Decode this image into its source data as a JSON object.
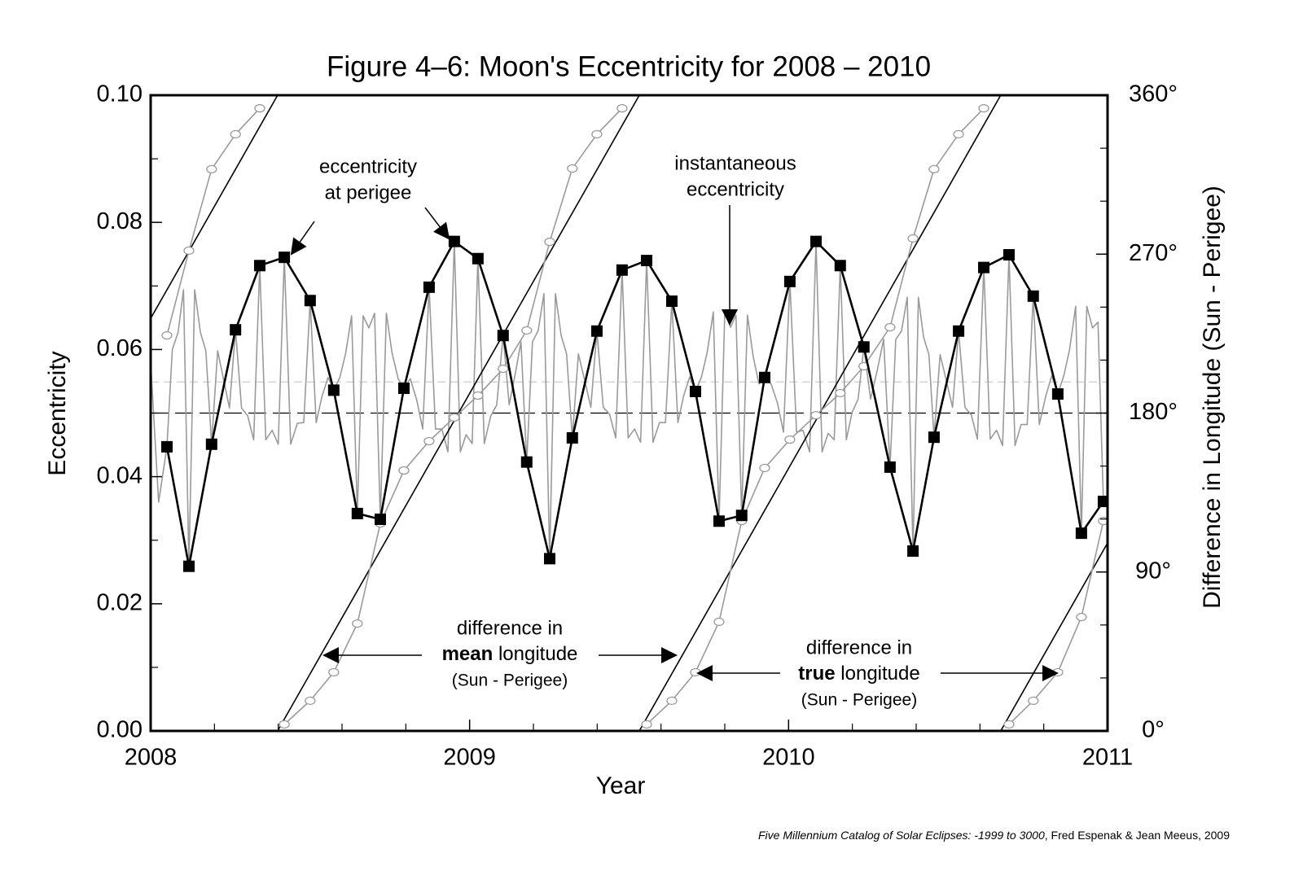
{
  "chart_data": {
    "type": "line",
    "title": "Figure 4–6:  Moon's Eccentricity for 2008 – 2010",
    "xlabel": "Year",
    "ylabel": "Eccentricity",
    "y2label": "Difference in Longitude (Sun - Perigee)",
    "xlim": [
      2008,
      2011
    ],
    "xticks": [
      2008,
      2009,
      2010,
      2011
    ],
    "xminorticks": [
      2008.2,
      2008.4,
      2008.6,
      2008.8,
      2009.2,
      2009.4,
      2009.6,
      2009.8,
      2010.2,
      2010.4,
      2010.6,
      2010.8
    ],
    "ylim": [
      0,
      0.1
    ],
    "yticks": [
      {
        "value": 0,
        "label": "0.00"
      },
      0.02,
      0.04,
      0.06,
      0.08,
      {
        "value": 0.1,
        "label": "0.10"
      }
    ],
    "yminorticks": [
      0.01,
      0.03,
      0.05,
      0.07,
      0.09
    ],
    "y2lim": [
      0,
      360
    ],
    "y2ticks": [
      {
        "value": 0,
        "label": "0°"
      },
      {
        "value": 90,
        "label": "90°"
      },
      {
        "value": 180,
        "label": "180°"
      },
      {
        "value": 270,
        "label": "270°"
      },
      {
        "value": 360,
        "label": "360°"
      }
    ],
    "y2minorticks": [
      30,
      60,
      120,
      150,
      210,
      240,
      300,
      330
    ],
    "hlines": [
      {
        "value": 0.0549,
        "color": "#cccccc",
        "dash": "10 6"
      },
      {
        "value": 0.05,
        "color": "#000000",
        "dash": "22 8"
      }
    ],
    "series": [
      {
        "color": "#9a9a9a",
        "width": 1.6,
        "x": [
          2008.0,
          2008.025,
          2008.051,
          2008.068,
          2008.086,
          2008.103,
          2008.12,
          2008.138,
          2008.156,
          2008.173,
          2008.191,
          2008.21,
          2008.229,
          2008.247,
          2008.266,
          2008.285,
          2008.304,
          2008.323,
          2008.342,
          2008.361,
          2008.381,
          2008.4,
          2008.419,
          2008.439,
          2008.46,
          2008.48,
          2008.5,
          2008.519,
          2008.537,
          2008.556,
          2008.574,
          2008.593,
          2008.611,
          2008.63,
          2008.648,
          2008.666,
          2008.684,
          2008.702,
          2008.72,
          2008.739,
          2008.757,
          2008.776,
          2008.794,
          2008.814,
          2008.834,
          2008.853,
          2008.873,
          2008.893,
          2008.913,
          2008.932,
          2008.952,
          2008.971,
          2008.989,
          2009.008,
          2009.026,
          2009.046,
          2009.066,
          2009.085,
          2009.105,
          2009.124,
          2009.142,
          2009.161,
          2009.179,
          2009.197,
          2009.215,
          2009.233,
          2009.251,
          2009.269,
          2009.287,
          2009.304,
          2009.322,
          2009.341,
          2009.361,
          2009.38,
          2009.399,
          2009.419,
          2009.439,
          2009.458,
          2009.478,
          2009.497,
          2009.517,
          2009.536,
          2009.555,
          2009.575,
          2009.595,
          2009.614,
          2009.634,
          2009.653,
          2009.671,
          2009.69,
          2009.708,
          2009.727,
          2009.745,
          2009.764,
          2009.782,
          2009.8,
          2009.818,
          2009.835,
          2009.853,
          2009.871,
          2009.889,
          2009.907,
          2009.925,
          2009.945,
          2009.965,
          2009.984,
          2010.004,
          2010.025,
          2010.045,
          2010.066,
          2010.086,
          2010.105,
          2010.124,
          2010.143,
          2010.162,
          2010.181,
          2010.199,
          2010.218,
          2010.236,
          2010.257,
          2010.277,
          2010.298,
          2010.318,
          2010.336,
          2010.354,
          2010.372,
          2010.39,
          2010.407,
          2010.423,
          2010.44,
          2010.456,
          2010.475,
          2010.495,
          2010.514,
          2010.533,
          2010.553,
          2010.573,
          2010.592,
          2010.612,
          2010.632,
          2010.652,
          2010.671,
          2010.691,
          2010.71,
          2010.729,
          2010.748,
          2010.767,
          2010.786,
          2010.806,
          2010.825,
          2010.844,
          2010.863,
          2010.881,
          2010.9,
          2010.918,
          2010.935,
          2010.953,
          2010.97,
          2010.987
        ],
        "values": [
          0.058,
          0.036,
          0.0447,
          0.06,
          0.0627,
          0.0694,
          0.0259,
          0.0694,
          0.0627,
          0.0598,
          0.0451,
          0.0598,
          0.0552,
          0.0508,
          0.0631,
          0.0508,
          0.0496,
          0.0458,
          0.0732,
          0.0458,
          0.0473,
          0.0451,
          0.0745,
          0.0451,
          0.0484,
          0.0485,
          0.0677,
          0.0485,
          0.0526,
          0.0556,
          0.0536,
          0.0556,
          0.0593,
          0.0653,
          0.0342,
          0.0653,
          0.0634,
          0.0657,
          0.0333,
          0.0657,
          0.0594,
          0.0554,
          0.0539,
          0.0554,
          0.0521,
          0.0475,
          0.0698,
          0.0475,
          0.0475,
          0.0439,
          0.077,
          0.0439,
          0.0466,
          0.0452,
          0.0743,
          0.0452,
          0.0495,
          0.0513,
          0.0622,
          0.0513,
          0.0559,
          0.0612,
          0.0423,
          0.0612,
          0.063,
          0.0688,
          0.0271,
          0.0688,
          0.0622,
          0.0593,
          0.0461,
          0.0593,
          0.0551,
          0.0509,
          0.0629,
          0.0509,
          0.0498,
          0.0461,
          0.0725,
          0.0461,
          0.0475,
          0.0454,
          0.074,
          0.0454,
          0.0485,
          0.0485,
          0.0676,
          0.0485,
          0.0527,
          0.0557,
          0.0534,
          0.0557,
          0.0596,
          0.0659,
          0.033,
          0.0659,
          0.0635,
          0.0654,
          0.0339,
          0.0654,
          0.0589,
          0.0546,
          0.0556,
          0.0546,
          0.0516,
          0.047,
          0.0707,
          0.047,
          0.0473,
          0.0439,
          0.077,
          0.0439,
          0.0468,
          0.0458,
          0.0732,
          0.0458,
          0.0501,
          0.0522,
          0.0604,
          0.0522,
          0.0565,
          0.0616,
          0.0415,
          0.0616,
          0.0629,
          0.0682,
          0.0283,
          0.0682,
          0.062,
          0.0592,
          0.0462,
          0.0592,
          0.055,
          0.0509,
          0.0629,
          0.0509,
          0.0497,
          0.0459,
          0.0729,
          0.0459,
          0.0473,
          0.0449,
          0.0749,
          0.0449,
          0.0482,
          0.0482,
          0.0684,
          0.0482,
          0.0526,
          0.0559,
          0.053,
          0.0559,
          0.06,
          0.0668,
          0.0311,
          0.0668,
          0.0634,
          0.0643,
          0.0361
        ]
      },
      {
        "color": "#000000",
        "width": 1.6,
        "axis": "y2",
        "wrap": true,
        "x": [
          2008,
          2008.398,
          2008.398,
          2009.532,
          2009.532,
          2010.665,
          2010.665,
          2011
        ],
        "values": [
          233.6,
          360,
          0,
          360,
          0,
          360,
          0,
          106.4
        ]
      },
      {
        "color": "#9a9a9a",
        "width": 1.6,
        "axis": "y2",
        "wrap": true,
        "marker": "circle",
        "x": [
          2008.051,
          2008.12,
          2008.191,
          2008.266,
          2008.342,
          2008.419,
          2008.5,
          2008.574,
          2008.648,
          2008.72,
          2008.794,
          2008.873,
          2008.952,
          2009.026,
          2009.105,
          2009.179,
          2009.251,
          2009.322,
          2009.399,
          2009.478,
          2009.555,
          2009.634,
          2009.708,
          2009.782,
          2009.853,
          2009.925,
          2010.004,
          2010.086,
          2010.162,
          2010.236,
          2010.318,
          2010.39,
          2010.456,
          2010.533,
          2010.612,
          2010.691,
          2010.767,
          2010.844,
          2010.918,
          2010.987
        ],
        "values": [
          224.0,
          272.0,
          318.1,
          337.9,
          352.6,
          3.7,
          17.1,
          33.2,
          60.8,
          117.5,
          147.5,
          164.1,
          177.5,
          189.9,
          205.1,
          226.8,
          277.0,
          318.5,
          337.9,
          352.6,
          3.7,
          17.1,
          33.2,
          61.8,
          118.9,
          148.9,
          165.0,
          178.8,
          191.3,
          206.5,
          228.6,
          278.9,
          318.1,
          337.9,
          352.6,
          3.7,
          17.1,
          33.2,
          64.5,
          118.9
        ]
      },
      {
        "color": "#000000",
        "width": 2.6,
        "marker": "square",
        "x": [
          2008.051,
          2008.12,
          2008.191,
          2008.266,
          2008.342,
          2008.419,
          2008.5,
          2008.574,
          2008.648,
          2008.72,
          2008.794,
          2008.873,
          2008.952,
          2009.026,
          2009.105,
          2009.179,
          2009.251,
          2009.322,
          2009.399,
          2009.478,
          2009.555,
          2009.634,
          2009.708,
          2009.782,
          2009.853,
          2009.925,
          2010.004,
          2010.086,
          2010.162,
          2010.236,
          2010.318,
          2010.39,
          2010.456,
          2010.533,
          2010.612,
          2010.691,
          2010.767,
          2010.844,
          2010.918,
          2010.987
        ],
        "values": [
          0.0447,
          0.0259,
          0.0451,
          0.0631,
          0.0732,
          0.0745,
          0.0677,
          0.0536,
          0.0342,
          0.0333,
          0.0539,
          0.0698,
          0.077,
          0.0743,
          0.0622,
          0.0423,
          0.0271,
          0.0461,
          0.0629,
          0.0725,
          0.074,
          0.0676,
          0.0534,
          0.033,
          0.0339,
          0.0556,
          0.0707,
          0.077,
          0.0732,
          0.0604,
          0.0415,
          0.0283,
          0.0462,
          0.0629,
          0.0729,
          0.0749,
          0.0684,
          0.053,
          0.0311,
          0.0361
        ]
      }
    ],
    "annotations": {
      "perigee": [
        "eccentricity",
        "at perigee"
      ],
      "instantaneous": [
        "instantaneous",
        "eccentricity"
      ],
      "mean": {
        "line1": "difference in",
        "bold": "mean",
        "rest": " longitude",
        "line3": "(Sun - Perigee)"
      },
      "true": {
        "line1": "difference in",
        "bold": "true",
        "rest": " longitude",
        "line3": "(Sun - Perigee)"
      }
    },
    "source": {
      "title": "Five Millennium Catalog of Solar Eclipses: -1999 to 3000",
      "rest": ", Fred Espenak & Jean Meeus, 2009"
    }
  }
}
